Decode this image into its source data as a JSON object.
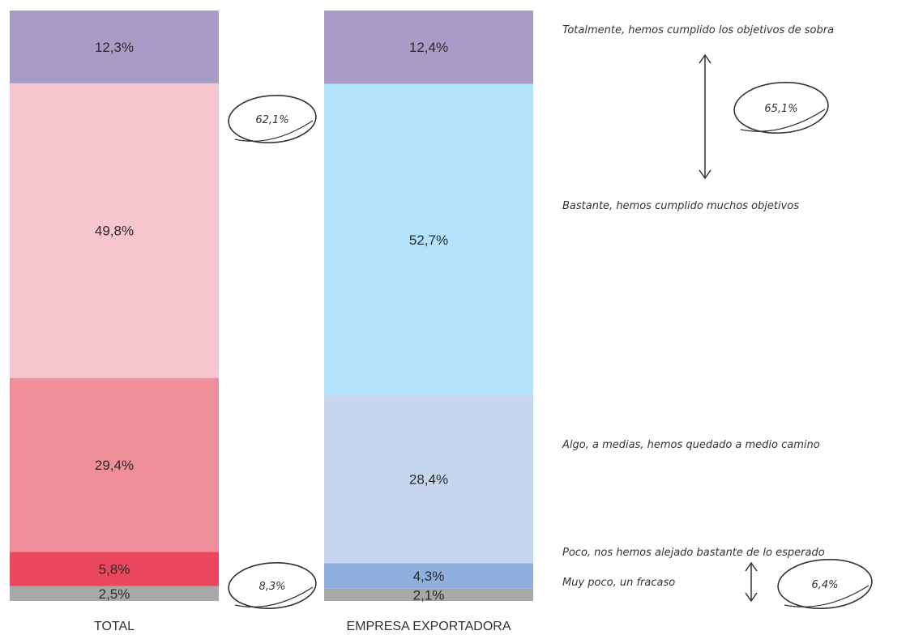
{
  "chart_data": {
    "type": "bar",
    "stacked": true,
    "percent_stacked": true,
    "categories": [
      "TOTAL",
      "EMPRESA EXPORTADORA"
    ],
    "series": [
      {
        "name": "Muy poco, un fracaso",
        "values": [
          2.5,
          2.1
        ],
        "labels": [
          "2,5%",
          "2,1%"
        ],
        "colors": [
          "#a8a8a8",
          "#a8a8a8"
        ]
      },
      {
        "name": "Poco, nos hemos alejado bastante de lo esperado",
        "values": [
          5.8,
          4.3
        ],
        "labels": [
          "5,8%",
          "4,3%"
        ],
        "colors": [
          "#e8475f",
          "#8fb0df"
        ]
      },
      {
        "name": "Algo, a medias, hemos quedado a medio camino",
        "values": [
          29.4,
          28.4
        ],
        "labels": [
          "29,4%",
          "28,4%"
        ],
        "colors": [
          "#ee8e98",
          "#c6d6ee"
        ]
      },
      {
        "name": "Bastante, hemos cumplido muchos objetivos",
        "values": [
          49.8,
          52.7
        ],
        "labels": [
          "49,8%",
          "52,7%"
        ],
        "colors": [
          "#f6c6cf",
          "#b3e3fb"
        ]
      },
      {
        "name": "Totalmente, hemos cumplido los objetivos de sobra",
        "values": [
          12.3,
          12.4
        ],
        "labels": [
          "12,3%",
          "12,4%"
        ],
        "colors": [
          "#a79cc6",
          "#a79cc6"
        ]
      }
    ],
    "callouts": {
      "total_top": "62,1%",
      "total_bottom": "8,3%",
      "export_top": "65,1%",
      "export_bottom": "6,4%"
    },
    "title": "",
    "xlabel": "",
    "ylabel": "",
    "grid": false,
    "legend": "right"
  }
}
